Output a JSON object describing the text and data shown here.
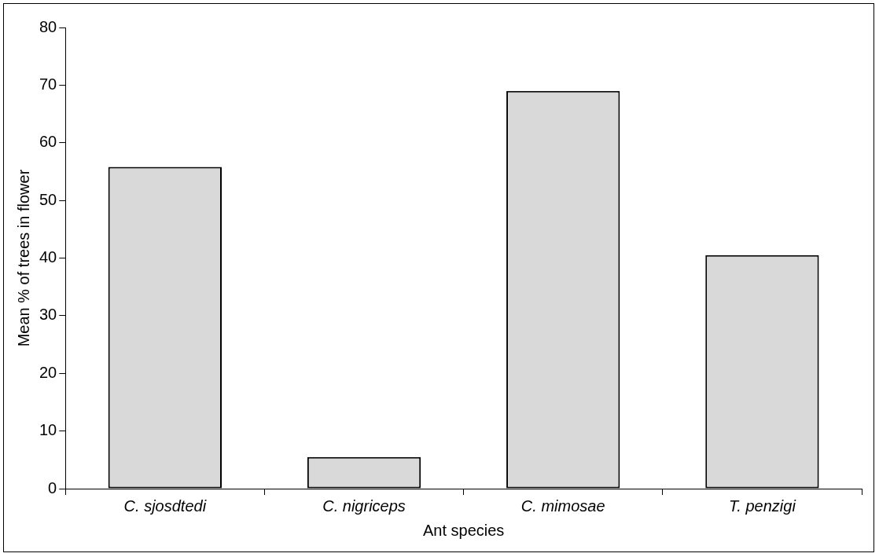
{
  "chart_data": {
    "type": "bar",
    "xlabel": "Ant species",
    "ylabel": "Mean % of trees in flower",
    "categories": [
      "C. sjosdtedi",
      "C. nigriceps",
      "C. mimosae",
      "T. penzigi"
    ],
    "values": [
      55.8,
      5.5,
      69,
      40.5
    ],
    "color": "#d9d9d9",
    "ylim": [
      0,
      80
    ],
    "yticks": [
      0,
      10,
      20,
      30,
      40,
      50,
      60,
      70,
      80
    ],
    "grid": false,
    "legend": false
  }
}
